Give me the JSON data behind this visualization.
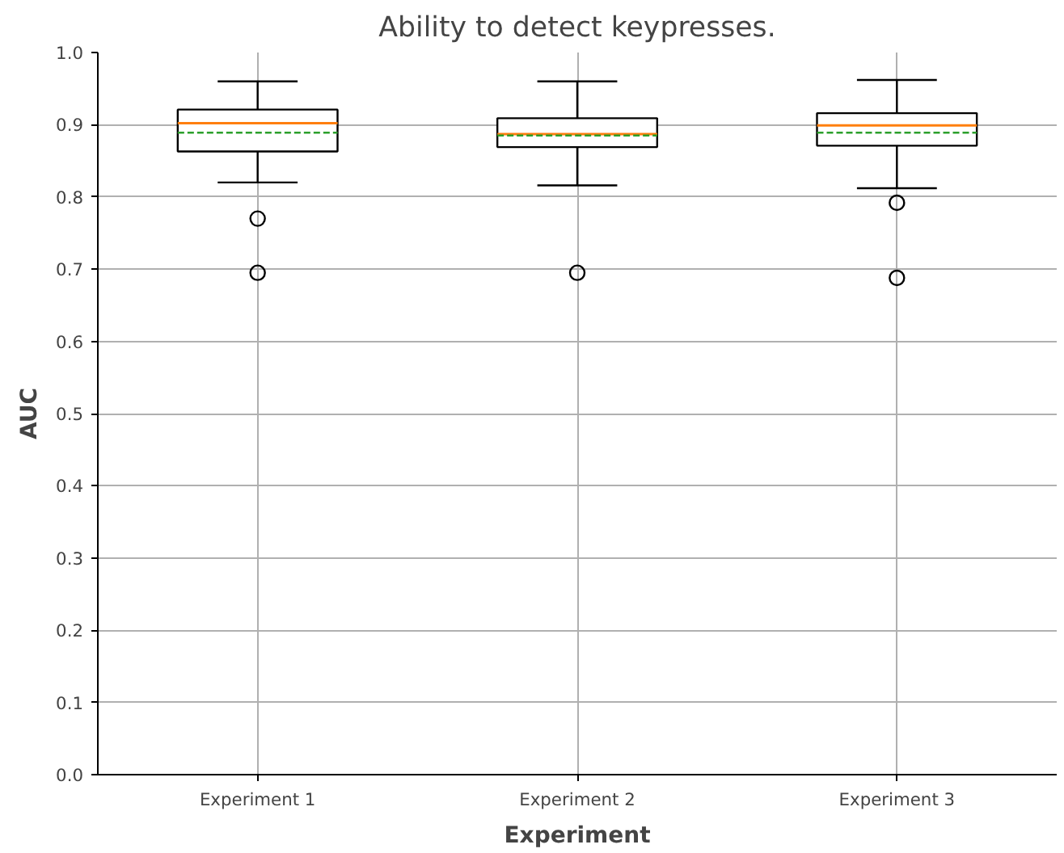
{
  "chart_data": {
    "type": "box",
    "title": "Ability to detect keypresses.",
    "xlabel": "Experiment",
    "ylabel": "AUC",
    "categories": [
      "Experiment 1",
      "Experiment 2",
      "Experiment 3"
    ],
    "boxes": [
      {
        "low": 0.82,
        "q1": 0.863,
        "median": 0.902,
        "q3": 0.921,
        "high": 0.96,
        "mean": 0.889,
        "outliers": [
          0.77,
          0.695
        ]
      },
      {
        "low": 0.816,
        "q1": 0.869,
        "median": 0.887,
        "q3": 0.909,
        "high": 0.96,
        "mean": 0.885,
        "outliers": [
          0.695
        ]
      },
      {
        "low": 0.812,
        "q1": 0.871,
        "median": 0.899,
        "q3": 0.916,
        "high": 0.962,
        "mean": 0.889,
        "outliers": [
          0.792,
          0.688
        ]
      }
    ],
    "ylim": [
      0.0,
      1.0
    ],
    "yticks": [
      {
        "value": 0,
        "label": "0.0"
      },
      0.1,
      0.2,
      0.3,
      0.4,
      0.5,
      0.6,
      0.7,
      0.8,
      0.9,
      {
        "value": 1,
        "label": "1.0"
      }
    ],
    "grid": true
  }
}
